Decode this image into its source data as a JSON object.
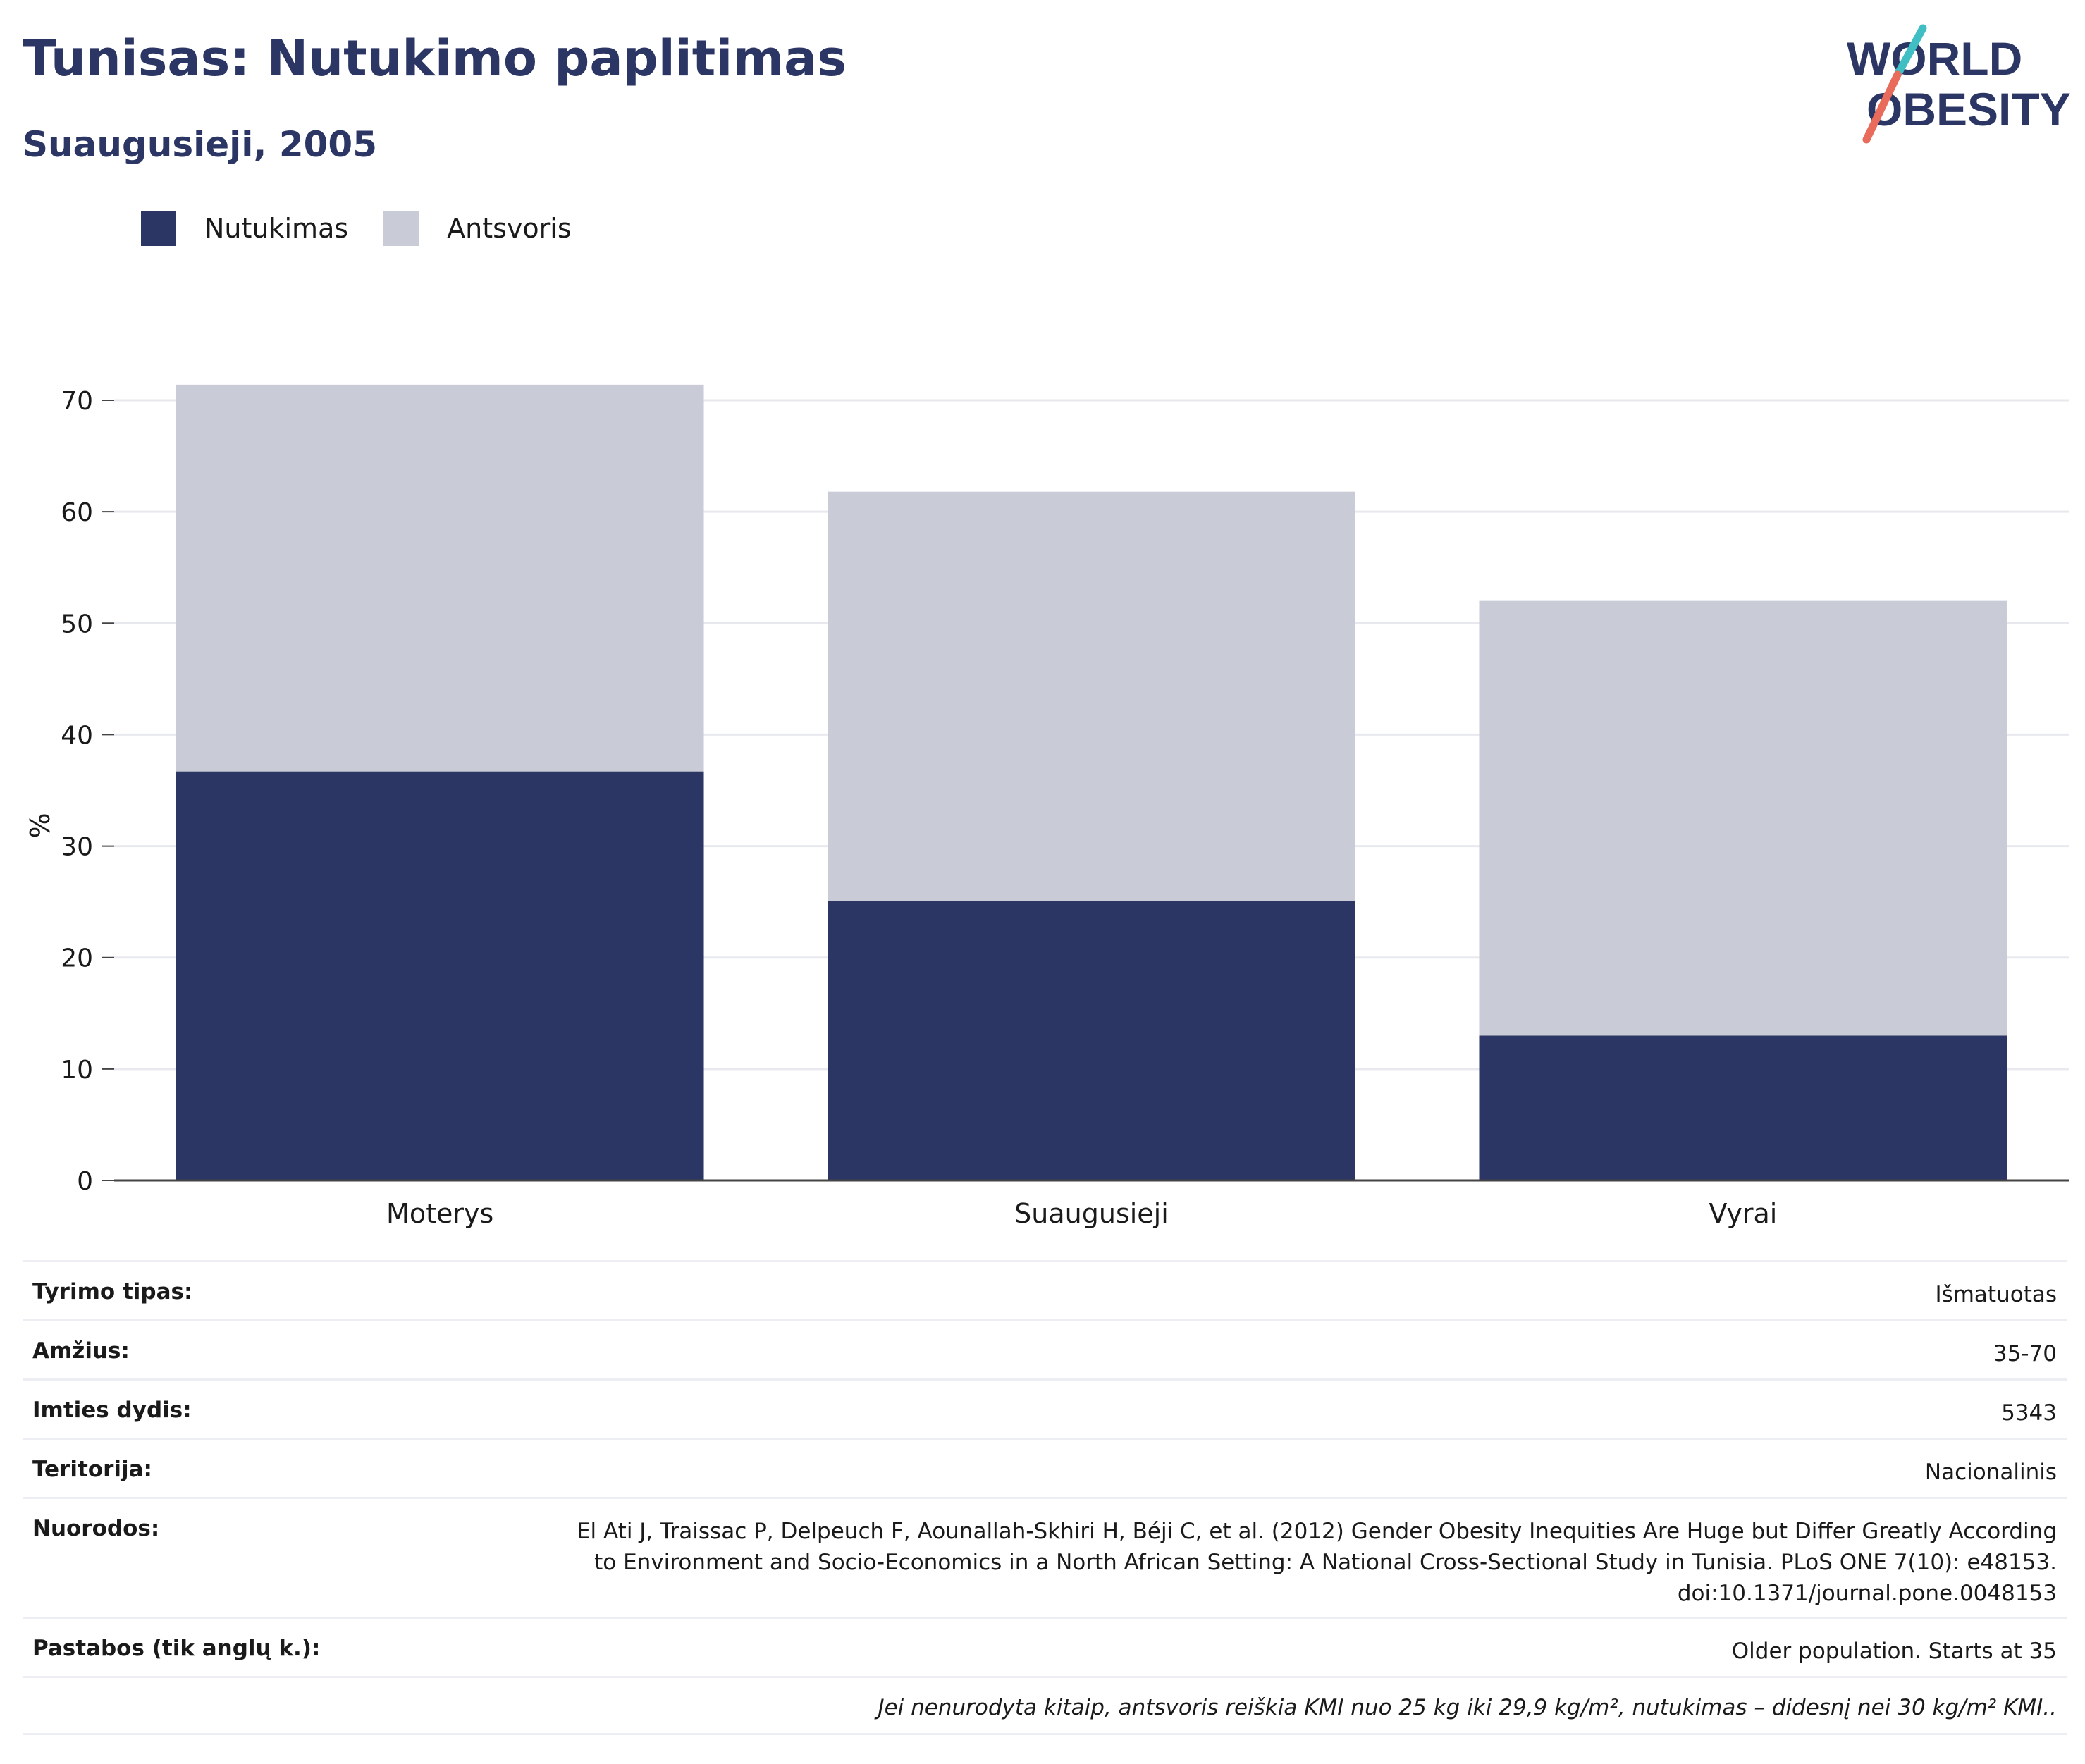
{
  "header": {
    "title": "Tunisas: Nutukimo paplitimas",
    "subtitle": "Suaugusieji, 2005"
  },
  "logo": {
    "line1": "WORLD",
    "line2": "OBESITY"
  },
  "legend": [
    {
      "label": "Nutukimas",
      "color": "#2b3664"
    },
    {
      "label": "Antsvoris",
      "color": "#c9cbd7"
    }
  ],
  "chart_data": {
    "type": "bar",
    "stacked": true,
    "categories": [
      "Moterys",
      "Suaugusieji",
      "Vyrai"
    ],
    "series": [
      {
        "name": "Nutukimas",
        "values": [
          36.7,
          25.1,
          13.0
        ],
        "color": "#2b3664"
      },
      {
        "name": "Antsvoris",
        "values": [
          34.7,
          36.7,
          39.0
        ],
        "color": "#c9cbd7"
      }
    ],
    "ylabel": "%",
    "ylim": [
      0,
      75
    ],
    "yticks": [
      0,
      10,
      20,
      30,
      40,
      50,
      60,
      70
    ],
    "grid": true,
    "legend_position": "top-left"
  },
  "info": {
    "rows": [
      {
        "key": "Tyrimo tipas:",
        "value": "Išmatuotas"
      },
      {
        "key": "Amžius:",
        "value": "35-70"
      },
      {
        "key": "Imties dydis:",
        "value": "5343"
      },
      {
        "key": "Teritorija:",
        "value": "Nacionalinis"
      }
    ],
    "refs": {
      "key": "Nuorodos:",
      "value": "El Ati J, Traissac P, Delpeuch F, Aounallah-Skhiri H, Béji C, et al. (2012) Gender Obesity Inequities Are Huge but Differ Greatly According to Environment and Socio-Economics in a North African Setting: A National Cross-Sectional Study in Tunisia. PLoS ONE 7(10): e48153. doi:10.1371/journal.pone.0048153"
    },
    "notes": {
      "key": "Pastabos (tik anglų k.):",
      "value": "Older population. Starts at 35"
    },
    "footnote": "Jei nenurodyta kitaip, antsvoris reiškia KMI nuo 25 kg iki 29,9 kg/m², nutukimas – didesnį nei 30 kg/m² KMI.."
  }
}
